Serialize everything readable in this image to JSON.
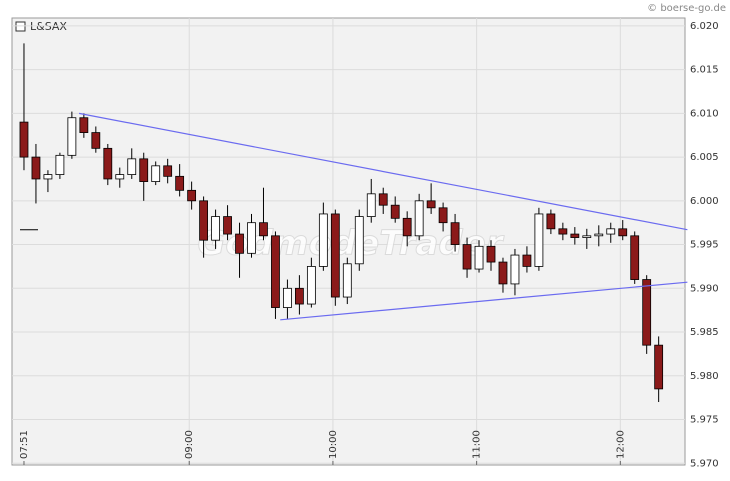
{
  "chart_data": {
    "type": "candlestick",
    "source": "© boerse-go.de",
    "watermark": "GodmodeTrader",
    "x": [
      "07:51",
      "07:56",
      "08:01",
      "08:06",
      "08:11",
      "08:16",
      "08:21",
      "08:26",
      "08:31",
      "08:36",
      "08:41",
      "08:46",
      "08:51",
      "08:56",
      "09:01",
      "09:06",
      "09:11",
      "09:16",
      "09:21",
      "09:26",
      "09:31",
      "09:36",
      "09:41",
      "09:46",
      "09:51",
      "09:56",
      "10:01",
      "10:06",
      "10:11",
      "10:16",
      "10:21",
      "10:26",
      "10:31",
      "10:36",
      "10:41",
      "10:46",
      "10:51",
      "10:56",
      "11:01",
      "11:06",
      "11:11",
      "11:16",
      "11:21",
      "11:26",
      "11:31",
      "11:36",
      "11:41",
      "11:46",
      "11:51",
      "11:56",
      "12:01",
      "12:06",
      "12:11",
      "12:16"
    ],
    "series": [
      {
        "name": "L&SAX",
        "open": [
          6.009,
          6.005,
          6.0025,
          6.003,
          6.0052,
          6.0095,
          6.0078,
          6.006,
          6.0025,
          6.003,
          6.0048,
          6.0022,
          6.004,
          6.0028,
          6.0012,
          6.0,
          5.9955,
          5.9982,
          5.9962,
          5.994,
          5.9975,
          5.996,
          5.9878,
          5.99,
          5.9882,
          5.9925,
          5.9985,
          5.989,
          5.9928,
          5.9982,
          6.0008,
          5.9995,
          5.998,
          5.996,
          6.0,
          5.9992,
          5.9975,
          5.995,
          5.9922,
          5.9948,
          5.993,
          5.9905,
          5.9938,
          5.9925,
          5.9985,
          5.9968,
          5.9962,
          5.9958,
          5.996,
          5.9962,
          5.9968,
          5.996,
          5.991,
          5.9835
        ],
        "high": [
          6.018,
          6.0065,
          6.0035,
          6.0055,
          6.0102,
          6.01,
          6.0085,
          6.0065,
          6.0038,
          6.006,
          6.0055,
          6.0045,
          6.0048,
          6.0042,
          6.0022,
          6.0005,
          5.999,
          5.9995,
          5.9975,
          5.9985,
          6.0015,
          5.9965,
          5.991,
          5.9915,
          5.9935,
          5.9998,
          5.999,
          5.9935,
          5.999,
          6.0025,
          6.0015,
          6.0005,
          5.9988,
          6.0008,
          6.002,
          5.9998,
          5.9985,
          5.9958,
          5.9955,
          5.9955,
          5.9935,
          5.9945,
          5.9948,
          5.9992,
          5.999,
          5.9975,
          5.997,
          5.9968,
          5.9972,
          5.9975,
          5.9978,
          5.9965,
          5.9915,
          5.9845
        ],
        "low": [
          6.0035,
          5.9997,
          6.001,
          6.0025,
          6.0048,
          6.0072,
          6.0055,
          6.0018,
          6.0015,
          6.0025,
          6.0,
          6.0018,
          6.002,
          6.0005,
          5.999,
          5.9935,
          5.9945,
          5.9955,
          5.9912,
          5.9935,
          5.9955,
          5.9865,
          5.9865,
          5.987,
          5.9878,
          5.992,
          5.988,
          5.9882,
          5.992,
          5.9975,
          5.9985,
          5.9975,
          5.9948,
          5.9955,
          5.9985,
          5.9965,
          5.9942,
          5.9912,
          5.9918,
          5.992,
          5.9895,
          5.9892,
          5.9918,
          5.992,
          5.9962,
          5.9955,
          5.995,
          5.9945,
          5.9948,
          5.9952,
          5.9955,
          5.9905,
          5.9825,
          5.977
        ],
        "close": [
          6.005,
          6.0025,
          6.003,
          6.0052,
          6.0095,
          6.0078,
          6.006,
          6.0025,
          6.003,
          6.0048,
          6.0022,
          6.004,
          6.0028,
          6.0012,
          6.0,
          5.9955,
          5.9982,
          5.9962,
          5.994,
          5.9975,
          5.996,
          5.9878,
          5.99,
          5.9882,
          5.9925,
          5.9985,
          5.989,
          5.9928,
          5.9982,
          6.0008,
          5.9995,
          5.998,
          5.996,
          6.0,
          5.9992,
          5.9975,
          5.995,
          5.9922,
          5.9948,
          5.993,
          5.9905,
          5.9938,
          5.9925,
          5.9985,
          5.9968,
          5.9962,
          5.9958,
          5.996,
          5.9962,
          5.9968,
          5.996,
          5.991,
          5.9835,
          5.9785
        ]
      }
    ],
    "up_color": "#ffffff",
    "down_color": "#8b1a1a",
    "xlim": [
      "07:46",
      "12:27"
    ],
    "xticks": [
      "07:51",
      "09:00",
      "10:00",
      "11:00",
      "12:00"
    ],
    "ylim": [
      5.9698,
      6.0209
    ],
    "yticks": [
      {
        "value": 5.97,
        "label": "5.970"
      },
      5.975,
      {
        "value": 5.98,
        "label": "5.980"
      },
      5.985,
      {
        "value": 5.99,
        "label": "5.990"
      },
      5.995,
      {
        "value": 6.0,
        "label": "6.000"
      },
      6.005,
      {
        "value": 6.01,
        "label": "6.010"
      },
      6.015,
      {
        "value": 6.02,
        "label": "6.020"
      }
    ],
    "grid": true,
    "reference_value": 5.9967,
    "trendlines": [
      {
        "x": [
          "08:14",
          "12:28"
        ],
        "y": [
          6.01,
          5.9967
        ]
      },
      {
        "x": [
          "09:38",
          "12:28"
        ],
        "y": [
          5.9864,
          5.9907
        ]
      }
    ],
    "trendline_color": "#6b6bf0"
  }
}
